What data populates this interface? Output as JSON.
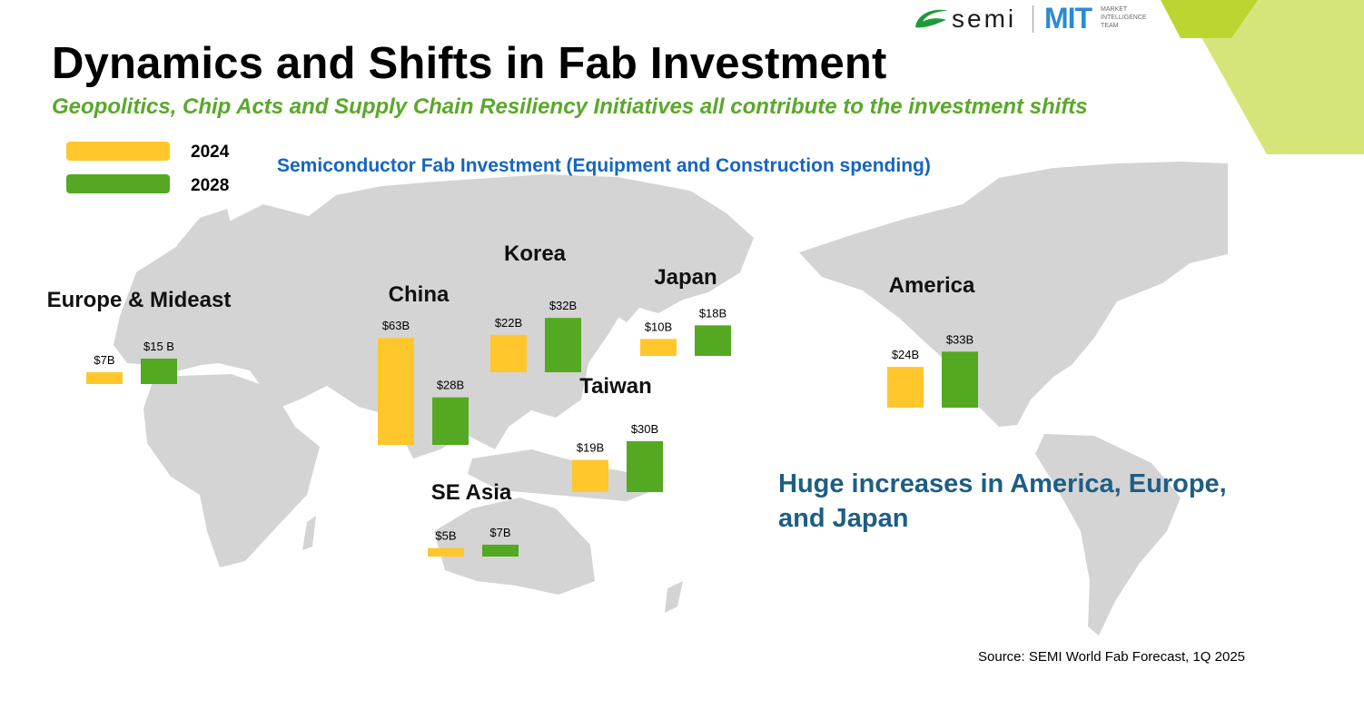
{
  "header": {
    "title": "Dynamics and Shifts in Fab Investment",
    "subtitle": "Geopolitics, Chip Acts and Supply Chain Resiliency Initiatives all contribute to the investment shifts"
  },
  "logos": {
    "semi_text": "semi",
    "mit_mark": "MIT",
    "mit_text": "MARKET INTELLIGENCE TEAM"
  },
  "chart_data": {
    "type": "bar",
    "title": "Semiconductor Fab Investment (Equipment and Construction spending)",
    "unit": "$B",
    "series_names": [
      "2024",
      "2028"
    ],
    "legend": [
      {
        "name": "2024",
        "color": "#ffc72c"
      },
      {
        "name": "2028",
        "color": "#55a821"
      }
    ],
    "regions": [
      {
        "name": "Europe & Mideast",
        "values": [
          7,
          15
        ],
        "labels": [
          "$7B",
          "$15 B"
        ]
      },
      {
        "name": "China",
        "values": [
          63,
          28
        ],
        "labels": [
          "$63B",
          "$28B"
        ]
      },
      {
        "name": "Korea",
        "values": [
          22,
          32
        ],
        "labels": [
          "$22B",
          "$32B"
        ]
      },
      {
        "name": "Japan",
        "values": [
          10,
          18
        ],
        "labels": [
          "$10B",
          "$18B"
        ]
      },
      {
        "name": "Taiwan",
        "values": [
          19,
          30
        ],
        "labels": [
          "$19B",
          "$30B"
        ]
      },
      {
        "name": "SE Asia",
        "values": [
          5,
          7
        ],
        "labels": [
          "$5B",
          "$7B"
        ]
      },
      {
        "name": "America",
        "values": [
          24,
          33
        ],
        "labels": [
          "$24B",
          "$33B"
        ]
      }
    ]
  },
  "callout": "Huge increases in America, Europe, and Japan",
  "source": "Source: SEMI World Fab Forecast, 1Q 2025",
  "colors": {
    "bar_2024": "#ffc72c",
    "bar_2028": "#55a821",
    "map": "#d4d4d4",
    "subtitle": "#5aa82a",
    "chart_title": "#1565c0",
    "callout": "#1d5e85"
  }
}
